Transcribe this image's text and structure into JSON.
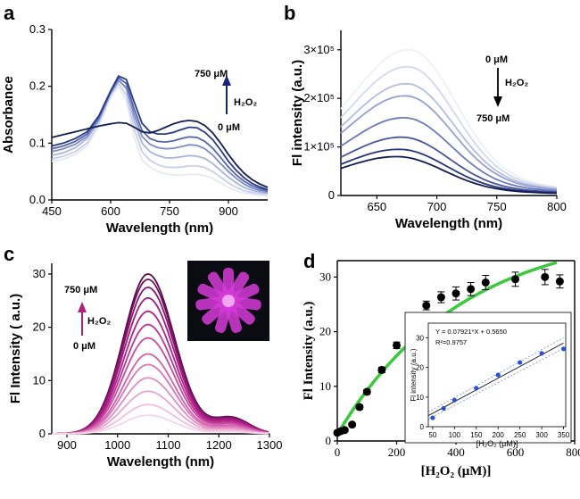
{
  "figure": {
    "panel_labels": [
      "a",
      "b",
      "c",
      "d"
    ]
  },
  "chart_data": [
    {
      "panel": "a",
      "type": "line",
      "xlabel": "Wavelength (nm)",
      "ylabel": "Absorbance",
      "xlim": [
        450,
        1000
      ],
      "ylim": [
        0.0,
        0.3
      ],
      "xticks": [
        450,
        600,
        750,
        900
      ],
      "yticks": [
        0.0,
        0.1,
        0.2,
        0.3
      ],
      "tick_labels_x": [
        "450",
        "600",
        "750",
        "900"
      ],
      "tick_labels_y": [
        "0.0",
        "0.1",
        "0.2",
        "0.3"
      ],
      "annotation": {
        "top": "750 μM",
        "middle": "H₂O₂",
        "bottom": "0 μM"
      },
      "x": [
        450,
        480,
        510,
        540,
        570,
        600,
        620,
        640,
        660,
        680,
        700,
        720,
        740,
        760,
        780,
        800,
        820,
        840,
        860,
        880,
        900,
        920,
        940,
        960,
        980,
        1000
      ],
      "series": [
        {
          "color": "#e6e9f4",
          "values": [
            0.068,
            0.072,
            0.08,
            0.095,
            0.13,
            0.18,
            0.2,
            0.175,
            0.11,
            0.07,
            0.058,
            0.05,
            0.046,
            0.044,
            0.044,
            0.045,
            0.045,
            0.043,
            0.038,
            0.03,
            0.022,
            0.016,
            0.012,
            0.01,
            0.008,
            0.007
          ]
        },
        {
          "color": "#c9cfe8",
          "values": [
            0.072,
            0.077,
            0.085,
            0.1,
            0.135,
            0.185,
            0.205,
            0.185,
            0.125,
            0.085,
            0.07,
            0.062,
            0.058,
            0.057,
            0.058,
            0.06,
            0.06,
            0.057,
            0.05,
            0.04,
            0.03,
            0.022,
            0.016,
            0.013,
            0.011,
            0.01
          ]
        },
        {
          "color": "#a9b3db",
          "values": [
            0.078,
            0.083,
            0.092,
            0.108,
            0.14,
            0.19,
            0.212,
            0.195,
            0.14,
            0.1,
            0.085,
            0.078,
            0.074,
            0.074,
            0.076,
            0.078,
            0.077,
            0.073,
            0.064,
            0.052,
            0.04,
            0.03,
            0.022,
            0.017,
            0.014,
            0.012
          ]
        },
        {
          "color": "#7e8cc7",
          "values": [
            0.085,
            0.09,
            0.098,
            0.112,
            0.142,
            0.188,
            0.21,
            0.198,
            0.15,
            0.112,
            0.098,
            0.092,
            0.09,
            0.091,
            0.094,
            0.097,
            0.096,
            0.09,
            0.079,
            0.064,
            0.05,
            0.038,
            0.028,
            0.021,
            0.017,
            0.014
          ]
        },
        {
          "color": "#5565ad",
          "values": [
            0.09,
            0.095,
            0.103,
            0.116,
            0.145,
            0.19,
            0.215,
            0.205,
            0.16,
            0.122,
            0.108,
            0.103,
            0.102,
            0.104,
            0.108,
            0.111,
            0.11,
            0.103,
            0.091,
            0.075,
            0.058,
            0.044,
            0.033,
            0.025,
            0.02,
            0.016
          ]
        },
        {
          "color": "#2a3a8a",
          "values": [
            0.095,
            0.1,
            0.108,
            0.12,
            0.148,
            0.192,
            0.218,
            0.212,
            0.172,
            0.135,
            0.12,
            0.116,
            0.116,
            0.119,
            0.124,
            0.128,
            0.127,
            0.119,
            0.106,
            0.088,
            0.068,
            0.052,
            0.039,
            0.029,
            0.023,
            0.018
          ]
        },
        {
          "color": "#141f55",
          "values": [
            0.11,
            0.115,
            0.12,
            0.125,
            0.13,
            0.134,
            0.136,
            0.135,
            0.128,
            0.12,
            0.118,
            0.122,
            0.128,
            0.134,
            0.138,
            0.14,
            0.138,
            0.131,
            0.118,
            0.1,
            0.08,
            0.062,
            0.047,
            0.036,
            0.028,
            0.022
          ]
        }
      ]
    },
    {
      "panel": "b",
      "type": "line",
      "xlabel": "Wavelength (nm)",
      "ylabel": "Fl intensity (a.u.)",
      "xlim": [
        620,
        800
      ],
      "ylim": [
        0,
        340000
      ],
      "xticks": [
        650,
        700,
        750,
        800
      ],
      "yticks": [
        0,
        100000,
        200000,
        300000
      ],
      "tick_labels_x": [
        "650",
        "700",
        "750",
        "800"
      ],
      "tick_labels_y": [
        "0",
        "1×10⁵",
        "2×10⁵",
        "3×10⁵"
      ],
      "annotation": {
        "top": "0 μM",
        "middle": "H₂O₂",
        "bottom": "750 μM"
      },
      "peaks": [
        300000,
        265000,
        230000,
        205000,
        160000,
        120000,
        95000,
        80000
      ],
      "peak_wavelengths": [
        678,
        677,
        676,
        675,
        674,
        672,
        670,
        668
      ],
      "colors": [
        "#eef0f8",
        "#d2d8ee",
        "#b4bde2",
        "#949fd2",
        "#6c79bd",
        "#46549f",
        "#28357e",
        "#121c52"
      ]
    },
    {
      "panel": "c",
      "type": "line",
      "xlabel": "Wavelength (nm)",
      "ylabel": "Fl Intensity ( a.u.)",
      "xlim": [
        870,
        1300
      ],
      "ylim": [
        0,
        32
      ],
      "xticks": [
        900,
        1000,
        1100,
        1200,
        1300
      ],
      "yticks": [
        0,
        10,
        20,
        30
      ],
      "tick_labels_x": [
        "900",
        "1000",
        "1100",
        "1200",
        "1300"
      ],
      "tick_labels_y": [
        "0",
        "10",
        "20",
        "30"
      ],
      "annotation": {
        "top": "750 μM",
        "middle": "H₂O₂",
        "bottom": "0 μM"
      },
      "peak_wavelength": 1060,
      "peaks": [
        30,
        29,
        27.5,
        25.5,
        23,
        20.5,
        18,
        15,
        13,
        10.5,
        8,
        5.5,
        3.5
      ],
      "colors": [
        "#5a0a4a",
        "#73105e",
        "#8c1670",
        "#a01c80",
        "#b0228c",
        "#bf3596",
        "#cb4aa0",
        "#d35fab",
        "#da76b7",
        "#e18dc3",
        "#e8a6d0",
        "#efbfdd",
        "#f5d6e9"
      ]
    },
    {
      "panel": "d",
      "type": "scatter",
      "xlabel": "[H₂O₂ (μM)]",
      "ylabel": "Fl Intensity (a.u.)",
      "xlim": [
        0,
        800
      ],
      "ylim": [
        0,
        33
      ],
      "xticks": [
        0,
        200,
        400,
        600,
        800
      ],
      "yticks": [
        0,
        10,
        20,
        30
      ],
      "tick_labels_x": [
        "0",
        "200",
        "400",
        "600",
        "800"
      ],
      "tick_labels_y": [
        "0",
        "10",
        "20",
        "30"
      ],
      "points": [
        {
          "x": 0,
          "y": 1.5,
          "err": 0.3
        },
        {
          "x": 12,
          "y": 1.8,
          "err": 0.3
        },
        {
          "x": 25,
          "y": 2.0,
          "err": 0.3
        },
        {
          "x": 50,
          "y": 3.0,
          "err": 0.3
        },
        {
          "x": 75,
          "y": 6.2,
          "err": 0.4
        },
        {
          "x": 100,
          "y": 9.0,
          "err": 0.4
        },
        {
          "x": 150,
          "y": 13.0,
          "err": 0.5
        },
        {
          "x": 200,
          "y": 17.5,
          "err": 0.6
        },
        {
          "x": 250,
          "y": 21.7,
          "err": 0.8
        },
        {
          "x": 300,
          "y": 24.8,
          "err": 0.8
        },
        {
          "x": 350,
          "y": 26.3,
          "err": 1.0
        },
        {
          "x": 400,
          "y": 27.0,
          "err": 1.2
        },
        {
          "x": 450,
          "y": 27.8,
          "err": 1.2
        },
        {
          "x": 500,
          "y": 29.0,
          "err": 1.3
        },
        {
          "x": 600,
          "y": 29.6,
          "err": 1.3
        },
        {
          "x": 700,
          "y": 30.0,
          "err": 1.4
        },
        {
          "x": 750,
          "y": 29.2,
          "err": 1.2
        }
      ],
      "fit_color": "#3ac93a",
      "inset": {
        "xlabel": "[H₂O₂ (μM)]",
        "ylabel": "Fl intensity (a.u.)",
        "xlim": [
          40,
          355
        ],
        "ylim": [
          0,
          35
        ],
        "xticks": [
          50,
          100,
          150,
          200,
          250,
          300,
          350
        ],
        "yticks": [
          0,
          10,
          20,
          30
        ],
        "equation": "Y = 0.07921*X + 0.5650",
        "r2": "R²=0.9757",
        "slope": 0.07921,
        "intercept": 0.565,
        "points": [
          {
            "x": 50,
            "y": 3.0
          },
          {
            "x": 75,
            "y": 6.2
          },
          {
            "x": 100,
            "y": 9.0
          },
          {
            "x": 150,
            "y": 13.0
          },
          {
            "x": 200,
            "y": 17.5
          },
          {
            "x": 250,
            "y": 21.7
          },
          {
            "x": 300,
            "y": 24.8
          },
          {
            "x": 350,
            "y": 26.3
          }
        ],
        "point_color": "#2b4fd6"
      }
    }
  ]
}
